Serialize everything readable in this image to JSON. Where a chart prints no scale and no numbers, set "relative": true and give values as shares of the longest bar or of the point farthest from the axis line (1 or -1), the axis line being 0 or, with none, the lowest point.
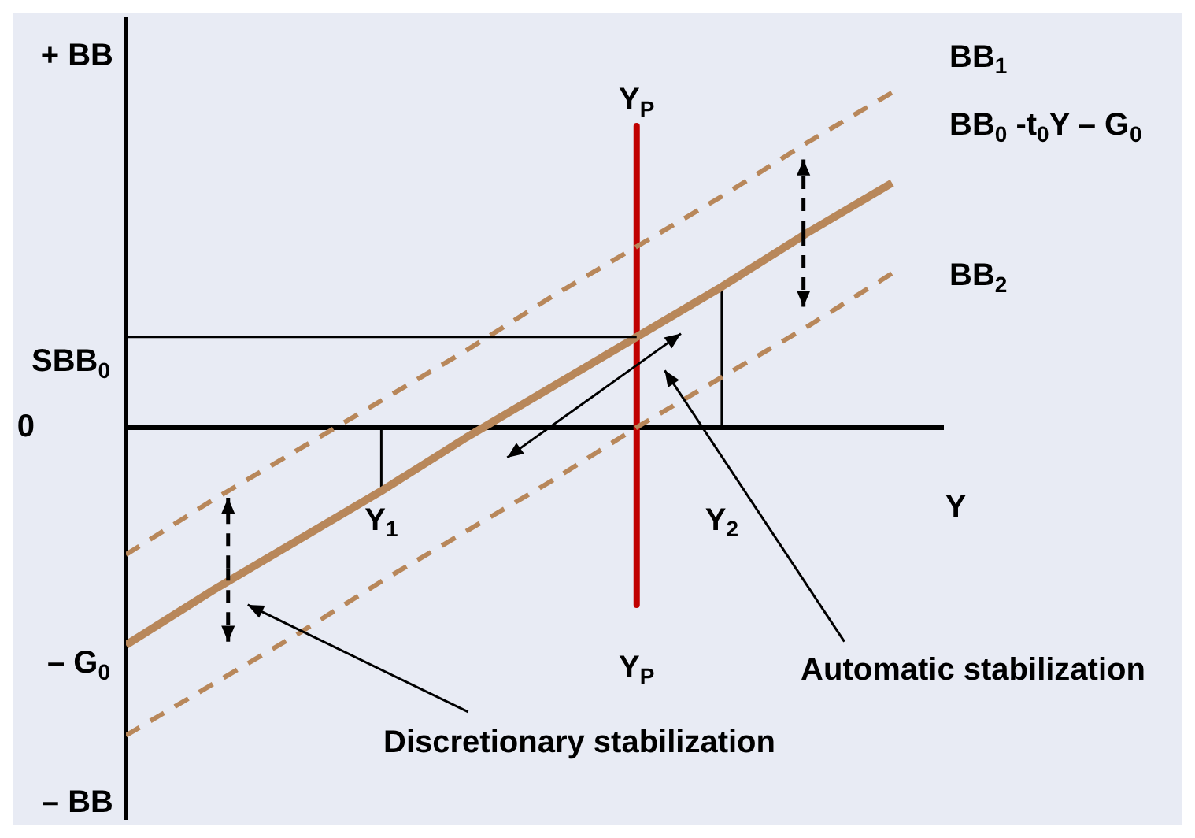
{
  "chart_data": {
    "type": "line",
    "relative": true,
    "xlabel": "Y",
    "categories": [
      null,
      null,
      null,
      "Y$_{1}$",
      null,
      null,
      "Y$_{P}$",
      "Y$_{2}$",
      null,
      null
    ],
    "series": [
      {
        "name": "BB$_{1}$",
        "color": "#b8875a",
        "line_style": "dashed",
        "values": [
          -0.38,
          -0.22,
          -0.07,
          0.08,
          0.23,
          0.39,
          0.54,
          0.69,
          0.85,
          1.0
        ]
      },
      {
        "name": "BB$_{0}$ -t$_{0}$Y – G$_{0}$",
        "color": "#b8875a",
        "line_style": "solid",
        "values": [
          -0.65,
          -0.49,
          -0.34,
          -0.19,
          -0.03,
          0.12,
          0.27,
          0.42,
          0.58,
          0.73
        ]
      },
      {
        "name": "BB$_{2}$",
        "color": "#b8875a",
        "line_style": "dashed",
        "values": [
          -0.92,
          -0.77,
          -0.62,
          -0.46,
          -0.31,
          -0.16,
          0.0,
          0.15,
          0.3,
          0.46
        ]
      },
      {
        "color": "#000000",
        "line_style": "solid",
        "x": [
          "Y$_{1}$",
          "Y$_{1}$"
        ],
        "values": [
          0,
          -0.19
        ]
      },
      {
        "color": "#000000",
        "line_style": "solid",
        "x": [
          "Y$_{2}$",
          "Y$_{2}$"
        ],
        "values": [
          0,
          0.42
        ]
      },
      {
        "name": "Y$_{P}$",
        "color": "#c00000",
        "line_style": "solid",
        "x": [
          "Y$_{P}$",
          "Y$_{P}$"
        ],
        "values": [
          0.9,
          -0.53
        ]
      }
    ],
    "ref_lines": [
      {
        "axis": "y",
        "value": 0.27,
        "label": "SBB$_{0}$",
        "color": "#000000"
      }
    ],
    "annotations": [
      "+ BB",
      "– BB",
      "Automatic stabilization",
      "Discretionary stabilization",
      "0",
      "– G$_{0}$"
    ],
    "grid": false,
    "legend": false,
    "marker": "none",
    "tick_labels": "x"
  }
}
